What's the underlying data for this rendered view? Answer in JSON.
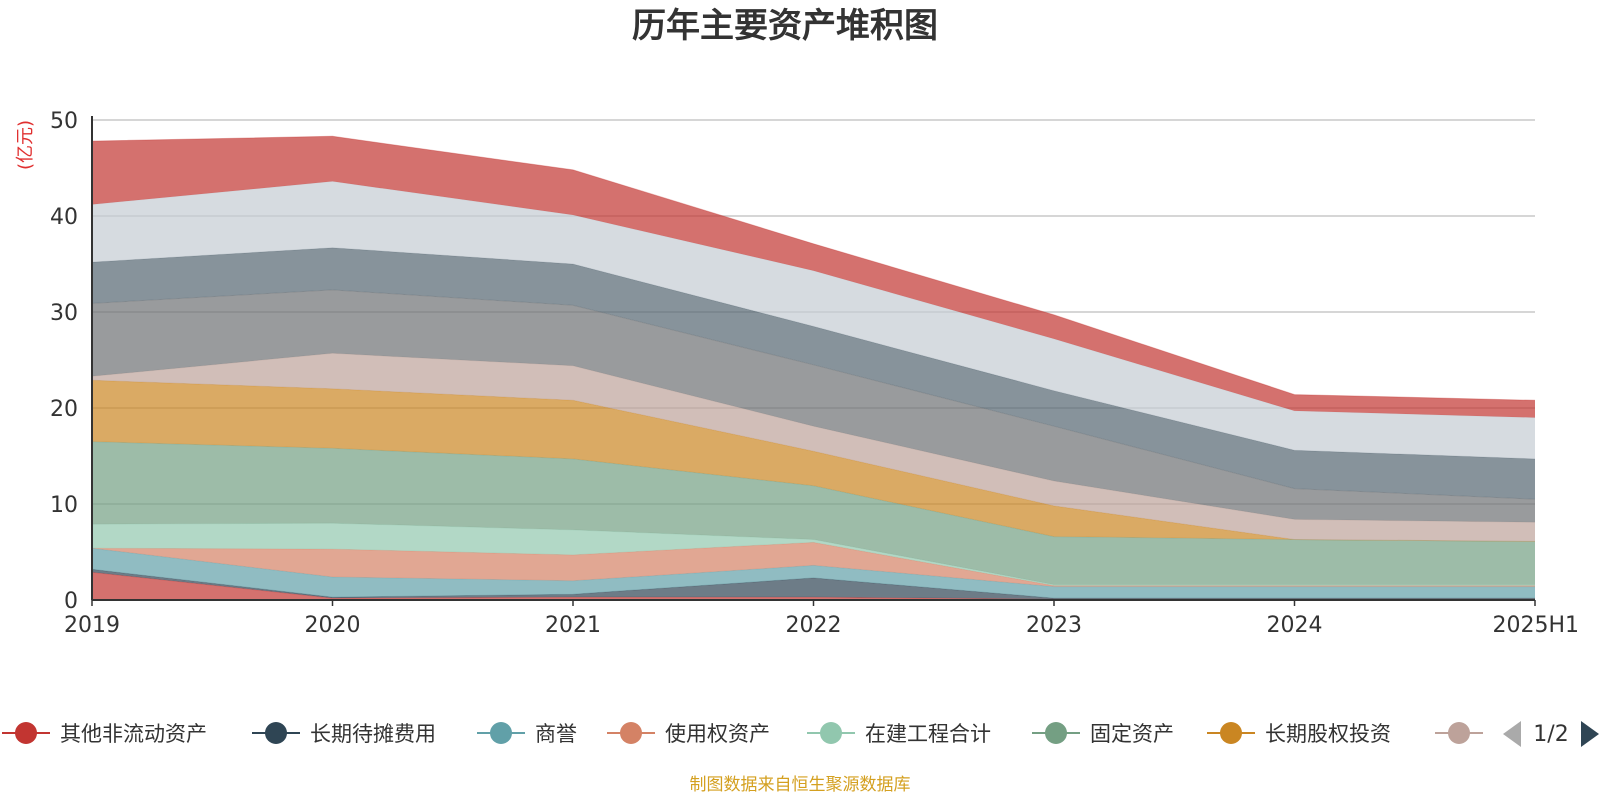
{
  "title": "历年主要资产堆积图",
  "source_note": "制图数据来自恒生聚源数据库",
  "legend_page": "1/2",
  "legend_visible": 8,
  "chart_data": {
    "type": "area",
    "stacked": true,
    "unit_label": "(亿元)",
    "x": [
      "2019",
      "2020",
      "2021",
      "2022",
      "2023",
      "2024",
      "2025H1"
    ],
    "ylim": [
      0,
      50
    ],
    "yticks": [
      "0",
      "10",
      "20",
      "30",
      "40",
      "50"
    ],
    "grid": true,
    "legend_position": "bottom",
    "series": [
      {
        "name": "其他非流动资产",
        "color": "#c23531",
        "values": [
          2.9,
          0.2,
          0.3,
          0.3,
          0.1,
          0.1,
          0.1
        ]
      },
      {
        "name": "长期待摊费用",
        "color": "#2f4554",
        "values": [
          0.3,
          0.1,
          0.3,
          2.0,
          0.1,
          0.1,
          0.1
        ]
      },
      {
        "name": "商誉",
        "color": "#61a0a8",
        "values": [
          2.2,
          2.1,
          1.4,
          1.3,
          1.2,
          1.2,
          1.2
        ]
      },
      {
        "name": "使用权资产",
        "color": "#d48265",
        "values": [
          0.0,
          2.9,
          2.7,
          2.4,
          0.1,
          0.1,
          0.1
        ]
      },
      {
        "name": "在建工程合计",
        "color": "#91c7ae",
        "values": [
          2.5,
          2.7,
          2.6,
          0.3,
          0.1,
          0.1,
          0.1
        ]
      },
      {
        "name": "固定资产",
        "color": "#749f83",
        "values": [
          8.6,
          7.8,
          7.4,
          5.6,
          5.0,
          4.7,
          4.5
        ]
      },
      {
        "name": "长期股权投资",
        "color": "#ca8622",
        "values": [
          6.4,
          6.2,
          6.1,
          3.6,
          3.2,
          0.0,
          0.0
        ]
      },
      {
        "name": "",
        "color": "#bda29a",
        "values": [
          0.4,
          3.7,
          3.6,
          2.6,
          2.6,
          2.1,
          2.0
        ]
      },
      {
        "name": "",
        "color": "#6e7074",
        "values": [
          7.6,
          6.6,
          6.3,
          6.4,
          5.7,
          3.2,
          2.4
        ]
      },
      {
        "name": "",
        "color": "#546570",
        "values": [
          4.3,
          4.4,
          4.3,
          4.0,
          3.7,
          4.0,
          4.2
        ]
      },
      {
        "name": "",
        "color": "#c4ccd3",
        "values": [
          6.0,
          6.9,
          5.1,
          5.8,
          5.4,
          4.1,
          4.3
        ]
      },
      {
        "name": "",
        "color": "#c23531",
        "values": [
          6.6,
          4.7,
          4.7,
          2.8,
          2.5,
          1.7,
          1.8
        ]
      }
    ]
  }
}
